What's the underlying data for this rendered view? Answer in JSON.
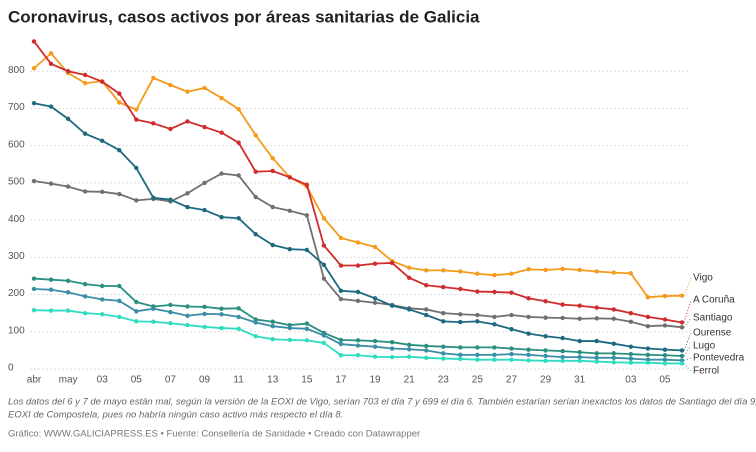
{
  "chart_data": {
    "type": "line",
    "title": "Coronavirus, casos activos por áreas sanitarias de Galicia",
    "notes": [
      "Los datos del 6 y 7 de mayo están mal, según la versión de la EOXI de Vigo, serían 703 el día 7 y 699 el día 6. También estarían serían inexactos los datos de Santiago del día 9, según la",
      "EOXI de Compostela, pues no habría ningún caso activo más respecto el día 8."
    ],
    "source": "Gráfico: WWW.GALICIAPRESS.ES • Fuente: Consellería de Sanidade • Creado con Datawrapper",
    "categories": [
      "abr",
      null,
      "may",
      null,
      "03",
      null,
      "05",
      null,
      "07",
      null,
      "09",
      null,
      "11",
      null,
      "13",
      null,
      "15",
      null,
      "17",
      null,
      "19",
      null,
      "21",
      null,
      "23",
      null,
      "25",
      null,
      "27",
      null,
      "29",
      null,
      "31",
      null,
      null,
      "03",
      null,
      "05",
      null
    ],
    "ylim": [
      0,
      900
    ],
    "yticks": [
      0,
      100,
      200,
      300,
      400,
      500,
      600,
      700,
      800
    ],
    "grid": true,
    "series": [
      {
        "name": "Vigo",
        "color": "#f59a1b",
        "values": [
          808,
          848,
          795,
          768,
          773,
          716,
          697,
          782,
          763,
          745,
          755,
          728,
          698,
          628,
          566,
          515,
          490,
          405,
          352,
          340,
          328,
          290,
          272,
          265,
          265,
          262,
          256,
          252,
          256,
          268,
          266,
          269,
          266,
          262,
          259,
          257,
          193,
          196,
          197
        ]
      },
      {
        "name": "A Coruña",
        "color": "#d12b2b",
        "values": [
          880,
          820,
          800,
          790,
          772,
          740,
          670,
          660,
          645,
          665,
          650,
          635,
          608,
          530,
          532,
          515,
          495,
          332,
          278,
          278,
          283,
          285,
          245,
          225,
          220,
          215,
          208,
          207,
          205,
          190,
          182,
          173,
          170,
          165,
          160,
          150,
          140,
          133,
          125
        ]
      },
      {
        "name": "Santiago",
        "color": "#707070",
        "values": [
          505,
          498,
          490,
          477,
          476,
          470,
          453,
          457,
          450,
          472,
          500,
          525,
          520,
          462,
          435,
          425,
          413,
          243,
          188,
          183,
          178,
          172,
          163,
          160,
          150,
          147,
          145,
          140,
          145,
          140,
          138,
          137,
          135,
          136,
          135,
          127,
          115,
          117,
          112
        ]
      },
      {
        "name": "Ourense",
        "color": "#1d6a80",
        "values": [
          714,
          705,
          672,
          632,
          613,
          588,
          540,
          460,
          455,
          435,
          427,
          408,
          405,
          362,
          333,
          322,
          320,
          280,
          210,
          207,
          190,
          170,
          160,
          145,
          128,
          126,
          128,
          120,
          107,
          95,
          88,
          83,
          75,
          75,
          68,
          60,
          55,
          52,
          50
        ]
      },
      {
        "name": "Lugo",
        "color": "#2a8f80",
        "values": [
          243,
          240,
          237,
          228,
          223,
          223,
          180,
          168,
          172,
          168,
          167,
          162,
          163,
          133,
          127,
          118,
          122,
          97,
          78,
          77,
          75,
          72,
          65,
          62,
          60,
          58,
          58,
          58,
          55,
          52,
          50,
          48,
          45,
          42,
          42,
          40,
          38,
          37,
          35
        ]
      },
      {
        "name": "Pontevedra",
        "color": "#3a8ea8",
        "values": [
          215,
          213,
          206,
          195,
          187,
          183,
          155,
          162,
          153,
          143,
          148,
          147,
          140,
          125,
          115,
          110,
          108,
          90,
          67,
          63,
          60,
          55,
          53,
          50,
          42,
          38,
          38,
          38,
          40,
          38,
          35,
          32,
          32,
          30,
          30,
          28,
          25,
          25,
          23
        ]
      },
      {
        "name": "Ferrol",
        "color": "#2fdcc0",
        "values": [
          158,
          157,
          157,
          150,
          147,
          140,
          128,
          127,
          123,
          118,
          113,
          110,
          108,
          88,
          80,
          78,
          77,
          70,
          37,
          37,
          33,
          32,
          33,
          30,
          28,
          27,
          25,
          25,
          25,
          23,
          22,
          22,
          22,
          20,
          18,
          17,
          17,
          15,
          15
        ]
      }
    ]
  }
}
